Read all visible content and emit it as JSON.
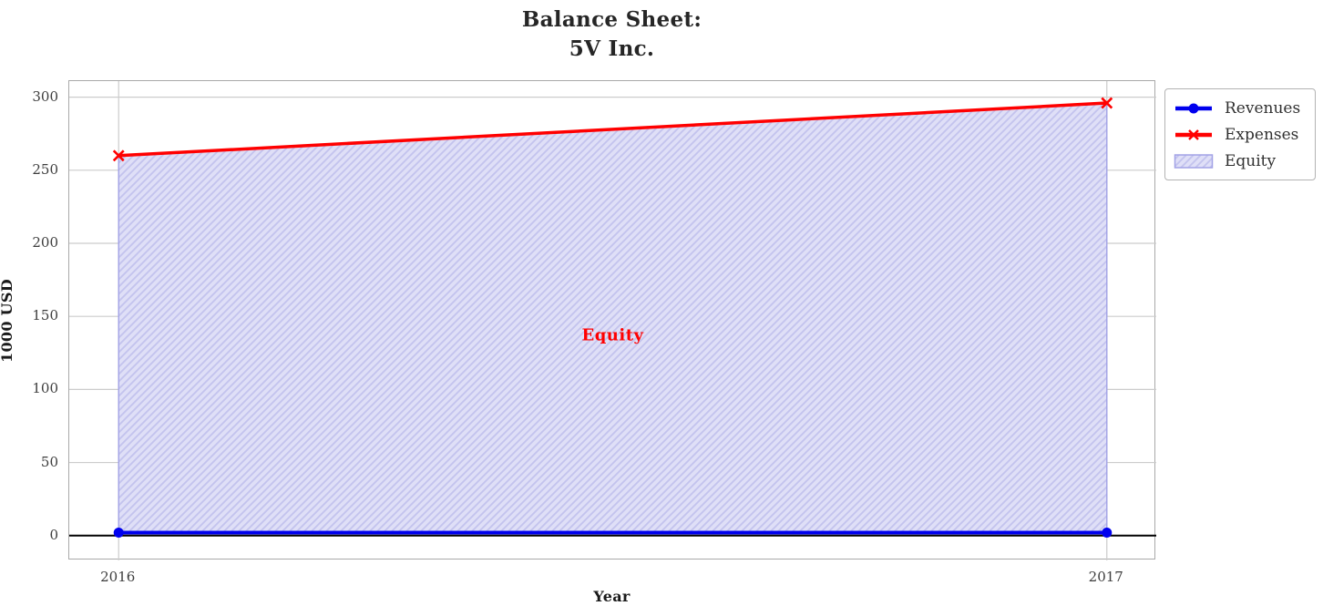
{
  "chart_data": {
    "type": "line",
    "title_lines": [
      "Balance Sheet:",
      "5V Inc."
    ],
    "xlabel": "Year",
    "ylabel": "1000 USD",
    "x": [
      2016,
      2017
    ],
    "xtick_labels": [
      "2016",
      "2017"
    ],
    "yticks": [
      0,
      50,
      100,
      150,
      200,
      250,
      300
    ],
    "xlim": [
      2015.95,
      2017.05
    ],
    "ylim": [
      -17,
      311
    ],
    "grid": true,
    "series": [
      {
        "name": "Revenues",
        "color": "#0000ee",
        "marker": "circle",
        "line_width": 4,
        "values": [
          2,
          2
        ]
      },
      {
        "name": "Expenses",
        "color": "#ff0000",
        "marker": "x",
        "line_width": 3.5,
        "values": [
          260,
          296
        ]
      }
    ],
    "fill_between": {
      "name": "Equity",
      "lower_series": "Revenues",
      "upper_series": "Expenses",
      "facecolor": "#dfdff7",
      "hatch": "/",
      "hatchcolor": "#c3c3ee",
      "edgecolor": "#a2a2e6"
    },
    "axhline": {
      "y": 0,
      "color": "#000000"
    },
    "annotation": {
      "text": "Equity",
      "x": 2016.5,
      "y": 137,
      "color": "#ff0000"
    },
    "legend": {
      "position": "outside-upper-right",
      "items": [
        {
          "label": "Revenues"
        },
        {
          "label": "Expenses"
        },
        {
          "label": "Equity"
        }
      ]
    },
    "colors": {
      "grid": "#cccccc",
      "spine": "#a9a9a9",
      "tick_text": "#3d3d3d",
      "title_text": "#262626"
    }
  }
}
